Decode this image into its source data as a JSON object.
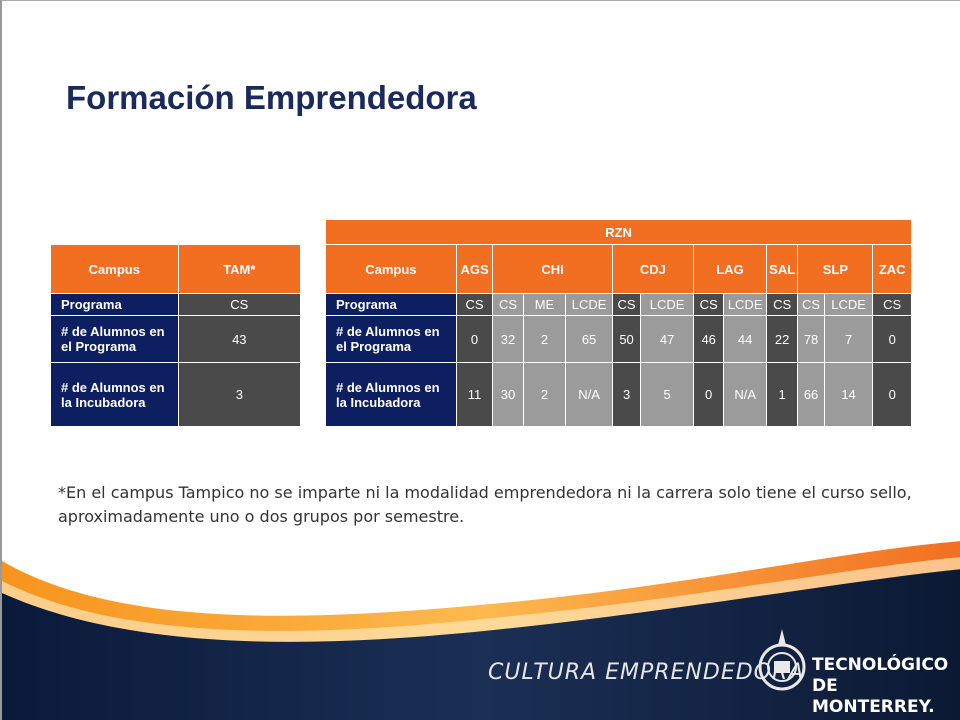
{
  "title": "Formación Emprendedora",
  "left_table": {
    "header": [
      "Campus",
      "TAM*"
    ],
    "rows": [
      {
        "label": "Programa",
        "value": "CS"
      },
      {
        "label": "# de Alumnos en el Programa",
        "value": "43"
      },
      {
        "label": "# de Alumnos en la Incubadora",
        "value": "3"
      }
    ]
  },
  "right_table": {
    "region": "RZN",
    "campus_label": "Campus",
    "campuses": [
      "AGS",
      "CHI",
      "CDJ",
      "LAG",
      "SAL",
      "SLP",
      "ZAC"
    ],
    "programa_label": "Programa",
    "programas": [
      "CS",
      "CS",
      "ME",
      "LCDE",
      "CS",
      "LCDE",
      "CS",
      "LCDE",
      "CS",
      "CS",
      "LCDE",
      "CS"
    ],
    "alumnos_programa_label": "# de Alumnos en el Programa",
    "alumnos_programa": [
      "0",
      "32",
      "2",
      "65",
      "50",
      "47",
      "46",
      "44",
      "22",
      "78",
      "7",
      "0"
    ],
    "alumnos_incubadora_label": "# de Alumnos en la Incubadora",
    "alumnos_incubadora": [
      "11",
      "30",
      "2",
      "N/A",
      "3",
      "5",
      "0",
      "N/A",
      "1",
      "66",
      "14",
      "0"
    ]
  },
  "note": "*En el campus Tampico no se imparte ni la modalidad emprendedora ni la carrera solo tiene el curso sello, aproximadamente uno o dos grupos por semestre.",
  "footer": {
    "tagline": "CULTURA EMPRENDEDORA",
    "brand_line1": "TECNOLÓGICO",
    "brand_line2": "DE MONTERREY."
  },
  "colors": {
    "orange": "#f26f21",
    "navy": "#0d1f61",
    "dark_gray": "#4a4a4a",
    "light_gray": "#9b9b9b"
  }
}
